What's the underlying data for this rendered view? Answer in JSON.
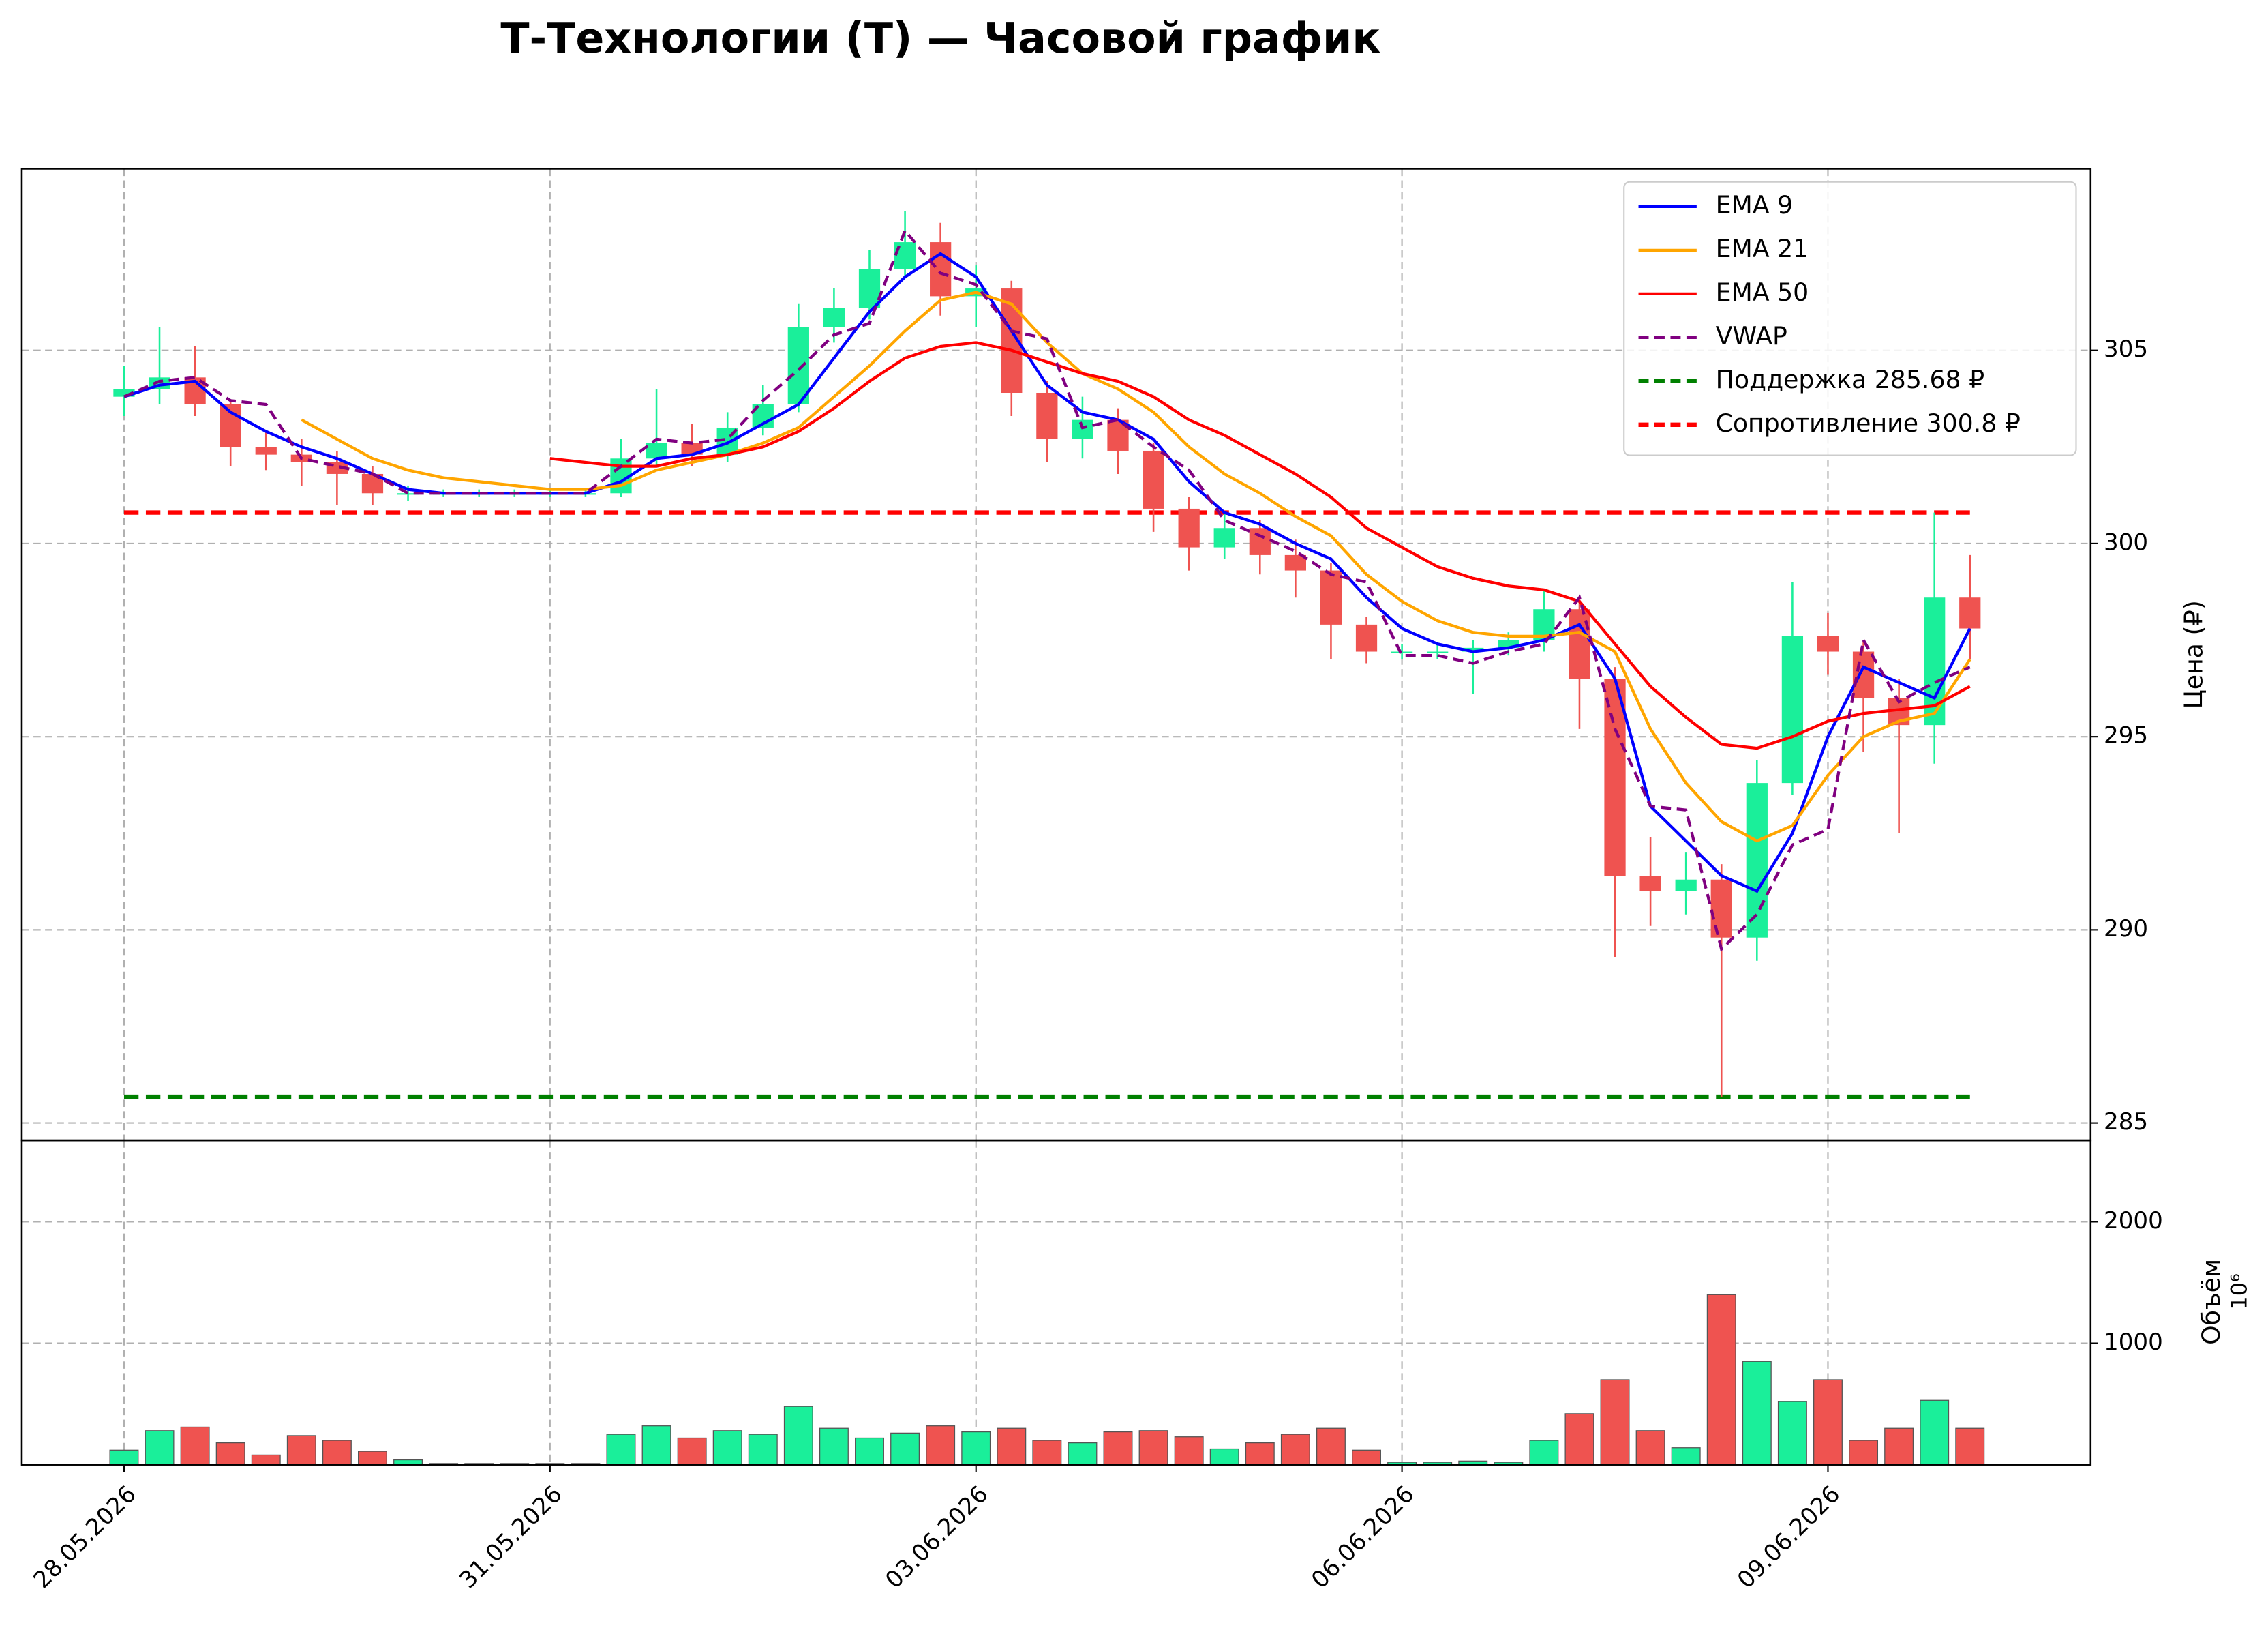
{
  "chart_data": {
    "type": "candlestick",
    "title": "Т-Технологии (Т) — Часовой график",
    "ylabel": "Цена (₽)",
    "volume_label": "Объём",
    "volume_offset_label": "10⁶",
    "grid": true,
    "legend_loc": "upper right",
    "up_color": "#1aef9a",
    "down_color": "#ef5350",
    "xlim": [
      -0.72,
      13.85
    ],
    "xticks": [
      {
        "value": 0,
        "label": "28.05.2026"
      },
      {
        "value": 3,
        "label": "31.05.2026"
      },
      {
        "value": 6,
        "label": "03.06.2026"
      },
      {
        "value": 9,
        "label": "06.06.2026"
      },
      {
        "value": 12,
        "label": "09.06.2026"
      }
    ],
    "ylim": [
      284.55,
      309.7
    ],
    "yticks": [
      285,
      290,
      295,
      300,
      305
    ],
    "volume_ylim": [
      0,
      2670
    ],
    "volume_yticks": [
      1000,
      2000
    ],
    "x": [
      0,
      0.25,
      0.5,
      0.75,
      1,
      1.25,
      1.5,
      1.75,
      2,
      2.25,
      2.5,
      2.75,
      3,
      3.25,
      3.5,
      3.75,
      4,
      4.25,
      4.5,
      4.75,
      5,
      5.25,
      5.5,
      5.75,
      6,
      6.25,
      6.5,
      6.75,
      7,
      7.25,
      7.5,
      7.75,
      8,
      8.25,
      8.5,
      8.75,
      9,
      9.25,
      9.5,
      9.75,
      10,
      10.25,
      10.5,
      10.75,
      11,
      11.25,
      11.5,
      11.75,
      12,
      12.25,
      12.5,
      12.75,
      13
    ],
    "open": [
      303.8,
      304.0,
      304.3,
      303.6,
      302.5,
      302.3,
      302.1,
      301.8,
      301.3,
      301.3,
      301.3,
      301.3,
      301.3,
      301.3,
      301.3,
      302.2,
      302.6,
      302.3,
      303.0,
      303.6,
      305.6,
      306.1,
      307.1,
      307.8,
      306.4,
      306.6,
      303.9,
      302.7,
      303.2,
      302.4,
      300.9,
      299.9,
      300.4,
      299.7,
      299.3,
      297.9,
      297.2,
      297.2,
      297.2,
      297.3,
      297.5,
      298.3,
      296.5,
      291.4,
      291.0,
      291.3,
      289.8,
      293.8,
      297.6,
      297.2,
      296.0,
      295.3,
      298.6
    ],
    "high": [
      304.6,
      305.6,
      305.1,
      303.7,
      302.9,
      302.7,
      302.4,
      302.0,
      301.5,
      301.4,
      301.4,
      301.4,
      301.4,
      301.4,
      302.7,
      304.0,
      303.1,
      303.4,
      304.1,
      306.2,
      306.6,
      307.6,
      308.6,
      308.3,
      307.2,
      306.8,
      304.2,
      303.8,
      303.5,
      302.6,
      301.2,
      300.8,
      300.6,
      300.1,
      299.5,
      298.1,
      297.4,
      297.4,
      297.5,
      297.7,
      298.8,
      298.6,
      296.8,
      292.4,
      292.0,
      291.7,
      294.4,
      299.0,
      298.2,
      297.5,
      296.5,
      300.8,
      299.7
    ],
    "low": [
      303.3,
      303.6,
      303.3,
      302.0,
      301.9,
      301.5,
      301.0,
      301.0,
      301.1,
      301.2,
      301.2,
      301.2,
      301.2,
      301.2,
      301.2,
      302.0,
      302.0,
      302.1,
      302.8,
      303.4,
      305.2,
      305.8,
      306.9,
      305.9,
      305.6,
      303.3,
      302.1,
      302.2,
      301.8,
      300.3,
      299.3,
      299.6,
      299.2,
      298.6,
      297.0,
      296.9,
      297.0,
      297.0,
      296.1,
      297.1,
      297.2,
      295.2,
      289.3,
      290.1,
      290.4,
      285.68,
      289.2,
      293.5,
      296.6,
      294.6,
      292.5,
      294.3,
      297.0
    ],
    "close": [
      304.0,
      304.3,
      303.6,
      302.5,
      302.3,
      302.1,
      301.8,
      301.3,
      301.3,
      301.3,
      301.3,
      301.3,
      301.3,
      301.3,
      302.2,
      302.6,
      302.3,
      303.0,
      303.6,
      305.6,
      306.1,
      307.1,
      307.8,
      306.4,
      306.6,
      303.9,
      302.7,
      303.2,
      302.4,
      300.9,
      299.9,
      300.4,
      299.7,
      299.3,
      297.9,
      297.2,
      297.2,
      297.2,
      297.3,
      297.5,
      298.3,
      296.5,
      291.4,
      291.0,
      291.3,
      289.8,
      293.8,
      297.6,
      297.2,
      296.0,
      295.3,
      298.6,
      297.8
    ],
    "volume": [
      120,
      280,
      310,
      180,
      80,
      240,
      200,
      110,
      40,
      10,
      10,
      10,
      10,
      10,
      250,
      320,
      220,
      280,
      250,
      480,
      300,
      220,
      260,
      320,
      270,
      300,
      200,
      180,
      270,
      280,
      230,
      130,
      180,
      250,
      300,
      120,
      20,
      20,
      30,
      20,
      200,
      420,
      700,
      280,
      140,
      1400,
      850,
      520,
      700,
      200,
      300,
      530,
      300
    ],
    "series": [
      {
        "name": "EMA 9",
        "color": "#0000ff",
        "linestyle": "solid",
        "values": [
          303.8,
          304.1,
          304.2,
          303.4,
          302.9,
          302.5,
          302.2,
          301.8,
          301.4,
          301.3,
          301.3,
          301.3,
          301.3,
          301.3,
          301.6,
          302.2,
          302.3,
          302.6,
          303.1,
          303.6,
          304.8,
          306.0,
          306.9,
          307.5,
          306.9,
          305.5,
          304.1,
          303.4,
          303.2,
          302.7,
          301.6,
          300.8,
          300.5,
          300.0,
          299.6,
          298.6,
          297.8,
          297.4,
          297.2,
          297.3,
          297.5,
          297.9,
          296.5,
          293.2,
          292.3,
          291.4,
          291.0,
          292.5,
          295.0,
          296.8,
          296.4,
          296.0,
          297.8
        ]
      },
      {
        "name": "EMA 21",
        "color": "#ffa500",
        "linestyle": "solid",
        "values": [
          null,
          null,
          null,
          null,
          null,
          303.2,
          302.7,
          302.2,
          301.9,
          301.7,
          301.6,
          301.5,
          301.4,
          301.4,
          301.5,
          301.9,
          302.1,
          302.3,
          302.6,
          303.0,
          303.8,
          304.6,
          305.5,
          306.3,
          306.5,
          306.2,
          305.2,
          304.4,
          304.0,
          303.4,
          302.5,
          301.8,
          301.3,
          300.7,
          300.2,
          299.2,
          298.5,
          298.0,
          297.7,
          297.6,
          297.6,
          297.7,
          297.2,
          295.2,
          293.8,
          292.8,
          292.3,
          292.7,
          294.0,
          295.0,
          295.4,
          295.6,
          297.0
        ]
      },
      {
        "name": "EMA 50",
        "color": "#ff0000",
        "linestyle": "solid",
        "values": [
          null,
          null,
          null,
          null,
          null,
          null,
          null,
          null,
          null,
          null,
          null,
          null,
          302.2,
          302.1,
          302.0,
          302.0,
          302.2,
          302.3,
          302.5,
          302.9,
          303.5,
          304.2,
          304.8,
          305.1,
          305.2,
          305.0,
          304.7,
          304.4,
          304.2,
          303.8,
          303.2,
          302.8,
          302.3,
          301.8,
          301.2,
          300.4,
          299.9,
          299.4,
          299.1,
          298.9,
          298.8,
          298.5,
          297.4,
          296.3,
          295.5,
          294.8,
          294.7,
          295.0,
          295.4,
          295.6,
          295.7,
          295.8,
          296.3
        ]
      },
      {
        "name": "VWAP",
        "color": "#800080",
        "linestyle": "dashed",
        "values": [
          303.8,
          304.2,
          304.3,
          303.7,
          303.6,
          302.2,
          302.0,
          301.8,
          301.3,
          301.3,
          301.3,
          301.3,
          301.3,
          301.3,
          302.0,
          302.7,
          302.6,
          302.7,
          303.7,
          304.5,
          305.4,
          305.7,
          308.1,
          307.0,
          306.7,
          305.5,
          305.3,
          303.0,
          303.2,
          302.5,
          301.9,
          300.6,
          300.2,
          299.8,
          299.2,
          299.0,
          297.1,
          297.1,
          296.9,
          297.2,
          297.4,
          298.6,
          295.2,
          293.2,
          293.1,
          289.5,
          290.4,
          292.2,
          292.6,
          297.5,
          295.9,
          296.4,
          296.8
        ]
      }
    ],
    "hlines": [
      {
        "name": "Поддержка 285.68 ₽",
        "value": 285.68,
        "color": "#008000"
      },
      {
        "name": "Сопротивление 300.8 ₽",
        "value": 300.8,
        "color": "#ff0000"
      }
    ]
  }
}
